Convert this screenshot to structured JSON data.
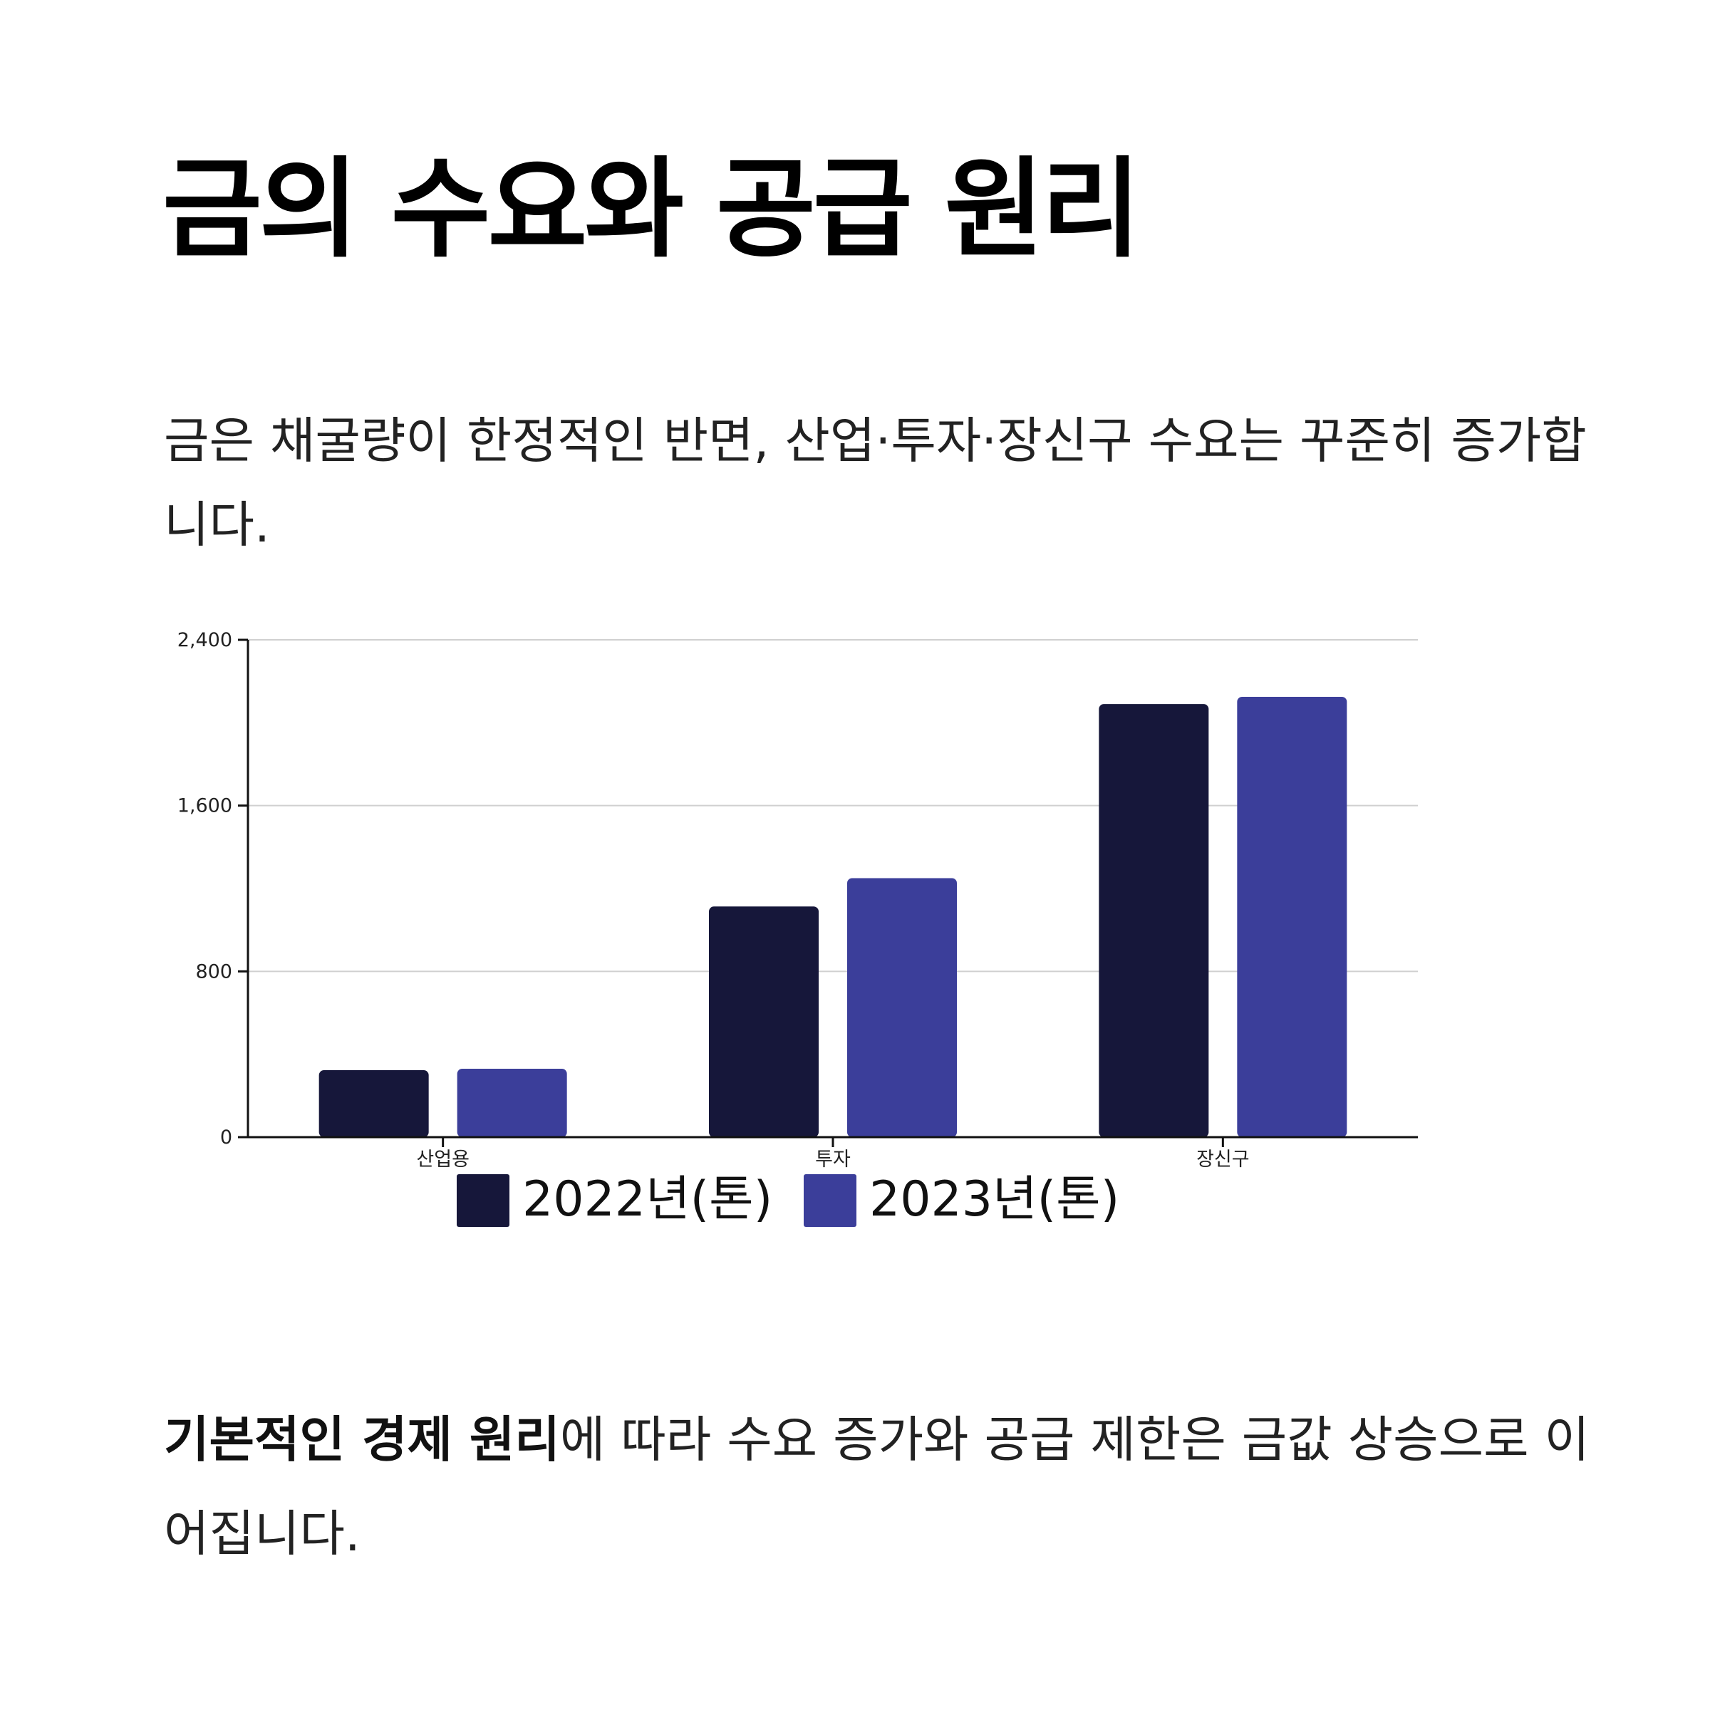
{
  "title": "금의 수요와 공급 원리",
  "intro": "금은 채굴량이 한정적인 반면, 산업·투자·장신구 수요는 꾸준히 증가합니다.",
  "outro": {
    "bold": "기본적인 경제 원리",
    "rest": "에 따라 수요 증가와 공급 제한은 금값 상승으로 이어집니다."
  },
  "colors": {
    "series_2022": "#16173a",
    "series_2023": "#3b3e9a",
    "grid": "#d0d0d0",
    "axis": "#111111"
  },
  "chart_data": {
    "type": "bar",
    "categories": [
      "산업용",
      "투자",
      "장신구"
    ],
    "series": [
      {
        "name": "2022년(톤)",
        "values": [
          323,
          1113,
          2090
        ]
      },
      {
        "name": "2023년(톤)",
        "values": [
          330,
          1250,
          2125
        ]
      }
    ],
    "ylim": [
      0,
      2400
    ],
    "yticks": [
      0,
      800,
      1600,
      2400
    ],
    "ytick_labels": [
      "0",
      "800",
      "1,600",
      "2,400"
    ],
    "grid": true,
    "legend_position": "bottom-center"
  }
}
